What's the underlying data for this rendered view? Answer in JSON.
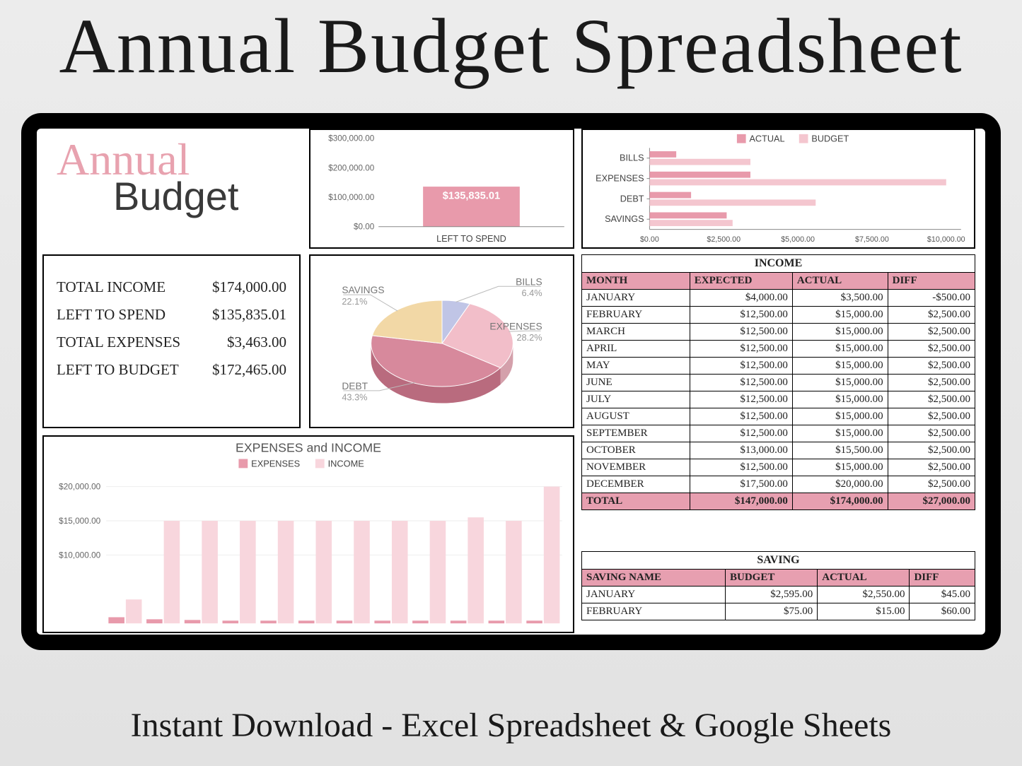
{
  "hero_title": "Annual Budget Spreadsheet",
  "footer": "Instant Download - Excel Spreadsheet & Google Sheets",
  "logo": {
    "script": "Annual",
    "sub": "Budget"
  },
  "colors": {
    "pink_main": "#e89aab",
    "pink_light": "#f4c6cf",
    "pink_bar": "#e79fb0",
    "pink_pale": "#f8d6dd",
    "yellow": "#f2d8a6",
    "lavender": "#c0c5e6",
    "rose": "#d7899c",
    "grid": "#cccccc",
    "axis": "#888888"
  },
  "summary": {
    "rows": [
      {
        "label": "TOTAL INCOME",
        "value": "$174,000.00"
      },
      {
        "label": "LEFT TO SPEND",
        "value": "$135,835.01"
      },
      {
        "label": "TOTAL EXPENSES",
        "value": "$3,463.00"
      },
      {
        "label": "LEFT TO BUDGET",
        "value": "$172,465.00"
      }
    ]
  },
  "left_to_spend_chart": {
    "type": "bar",
    "ylim": [
      0,
      300000
    ],
    "yticks": [
      "$0.00",
      "$100,000.00",
      "$200,000.00",
      "$300,000.00"
    ],
    "bar_value": 135835.01,
    "bar_label": "$135,835.01",
    "xlabel": "LEFT TO SPEND",
    "bar_color": "#e89aab"
  },
  "hbar_chart": {
    "type": "hbar",
    "legend": [
      {
        "label": "ACTUAL",
        "color": "#e89aab"
      },
      {
        "label": "BUDGET",
        "color": "#f4c6cf"
      }
    ],
    "xlim": [
      0,
      10500
    ],
    "xticks": [
      "$0.00",
      "$2,500.00",
      "$5,000.00",
      "$7,500.00",
      "$10,000.00"
    ],
    "categories": [
      {
        "label": "BILLS",
        "actual": 900,
        "budget": 3400
      },
      {
        "label": "EXPENSES",
        "actual": 3400,
        "budget": 10000
      },
      {
        "label": "DEBT",
        "actual": 1400,
        "budget": 5600
      },
      {
        "label": "SAVINGS",
        "actual": 2600,
        "budget": 2800
      }
    ]
  },
  "pie_chart": {
    "type": "pie",
    "slices": [
      {
        "label": "BILLS",
        "pct": 6.4,
        "color": "#c0c5e6"
      },
      {
        "label": "EXPENSES",
        "pct": 28.2,
        "color": "#f2bec9"
      },
      {
        "label": "DEBT",
        "pct": 43.3,
        "color": "#d7899c"
      },
      {
        "label": "SAVINGS",
        "pct": 22.1,
        "color": "#f2d8a6"
      }
    ]
  },
  "income_table": {
    "title": "INCOME",
    "columns": [
      "MONTH",
      "EXPECTED",
      "ACTUAL",
      "DIFF"
    ],
    "rows": [
      [
        "JANUARY",
        "$4,000.00",
        "$3,500.00",
        "-$500.00"
      ],
      [
        "FEBRUARY",
        "$12,500.00",
        "$15,000.00",
        "$2,500.00"
      ],
      [
        "MARCH",
        "$12,500.00",
        "$15,000.00",
        "$2,500.00"
      ],
      [
        "APRIL",
        "$12,500.00",
        "$15,000.00",
        "$2,500.00"
      ],
      [
        "MAY",
        "$12,500.00",
        "$15,000.00",
        "$2,500.00"
      ],
      [
        "JUNE",
        "$12,500.00",
        "$15,000.00",
        "$2,500.00"
      ],
      [
        "JULY",
        "$12,500.00",
        "$15,000.00",
        "$2,500.00"
      ],
      [
        "AUGUST",
        "$12,500.00",
        "$15,000.00",
        "$2,500.00"
      ],
      [
        "SEPTEMBER",
        "$12,500.00",
        "$15,000.00",
        "$2,500.00"
      ],
      [
        "OCTOBER",
        "$13,000.00",
        "$15,500.00",
        "$2,500.00"
      ],
      [
        "NOVEMBER",
        "$12,500.00",
        "$15,000.00",
        "$2,500.00"
      ],
      [
        "DECEMBER",
        "$17,500.00",
        "$20,000.00",
        "$2,500.00"
      ]
    ],
    "total": [
      "TOTAL",
      "$147,000.00",
      "$174,000.00",
      "$27,000.00"
    ]
  },
  "saving_table": {
    "title": "SAVING",
    "columns": [
      "SAVING NAME",
      "BUDGET",
      "ACTUAL",
      "DIFF"
    ],
    "rows": [
      [
        "JANUARY",
        "$2,595.00",
        "$2,550.00",
        "$45.00"
      ],
      [
        "FEBRUARY",
        "$75.00",
        "$15.00",
        "$60.00"
      ]
    ]
  },
  "expinc_chart": {
    "type": "grouped-bar",
    "title": "EXPENSES and INCOME",
    "legend": [
      {
        "label": "EXPENSES",
        "color": "#e89aab"
      },
      {
        "label": "INCOME",
        "color": "#f8d6dd"
      }
    ],
    "ylim": [
      0,
      22000
    ],
    "yticks": [
      "$10,000.00",
      "$15,000.00",
      "$20,000.00"
    ],
    "income_series": [
      3500,
      15000,
      15000,
      15000,
      15000,
      15000,
      15000,
      15000,
      15000,
      15500,
      15000,
      20000
    ],
    "expense_series": [
      900,
      600,
      500,
      400,
      400,
      400,
      400,
      400,
      400,
      400,
      400,
      400
    ]
  }
}
